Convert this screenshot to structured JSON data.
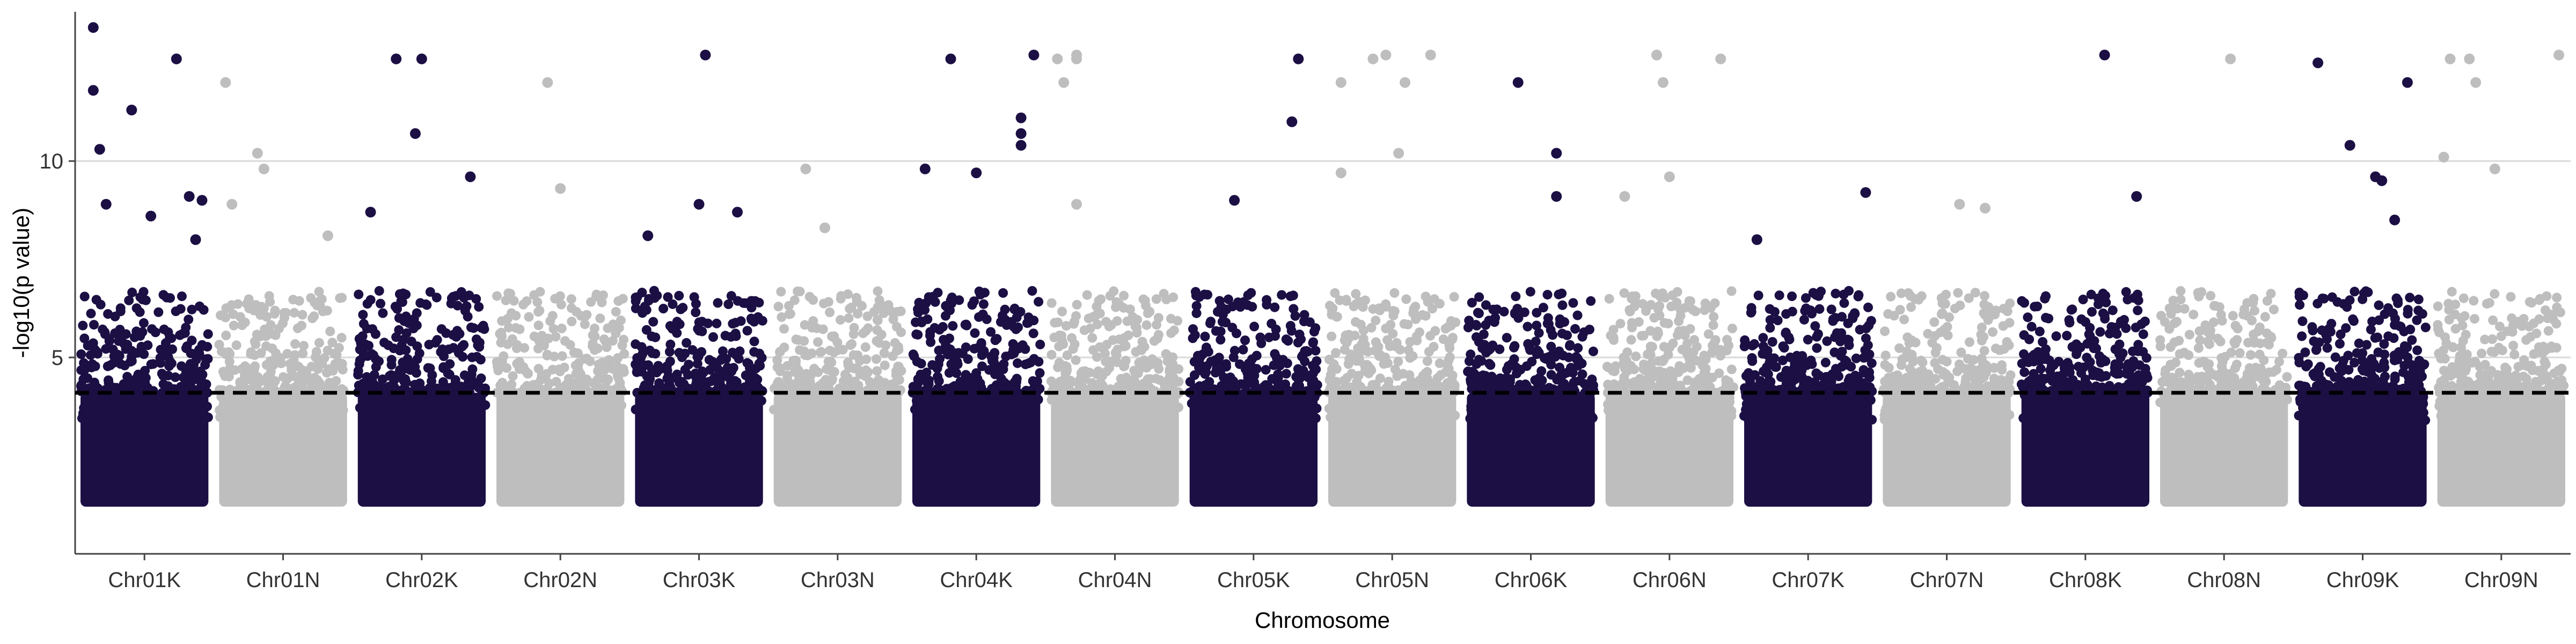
{
  "chart_data": {
    "type": "scatter",
    "title": "",
    "xlabel": "Chromosome",
    "ylabel": "-log10(p value)",
    "ylim": [
      0,
      13.8
    ],
    "y_ticks": [
      5,
      10
    ],
    "y_tick_labels": [
      "5",
      "10"
    ],
    "categories": [
      "Chr01K",
      "Chr01N",
      "Chr02K",
      "Chr02N",
      "Chr03K",
      "Chr03N",
      "Chr04K",
      "Chr04N",
      "Chr05K",
      "Chr05N",
      "Chr06K",
      "Chr06N",
      "Chr07K",
      "Chr07N",
      "Chr08K",
      "Chr08N",
      "Chr09K",
      "Chr09N"
    ],
    "threshold": 4.1,
    "grid": "horizontal major lines",
    "legend": "none",
    "dense_band_floor": 1.2,
    "colors": {
      "odd_chromosomes": "#1b0f44",
      "even_chromosomes": "#bebebe",
      "threshold_line": "#000000",
      "grid": "#d9d9d9"
    },
    "series": [
      {
        "category": "Chr01K",
        "top_hits": [
          [
            0.1,
            13.4
          ],
          [
            0.1,
            11.8
          ],
          [
            0.15,
            10.3
          ],
          [
            0.4,
            11.3
          ],
          [
            0.55,
            8.6
          ],
          [
            0.75,
            12.6
          ],
          [
            0.85,
            9.1
          ],
          [
            0.9,
            8.0
          ],
          [
            0.95,
            9.0
          ],
          [
            0.2,
            8.9
          ]
        ]
      },
      {
        "category": "Chr01N",
        "top_hits": [
          [
            0.05,
            12.0
          ],
          [
            0.3,
            10.2
          ],
          [
            0.35,
            9.8
          ],
          [
            0.1,
            8.9
          ],
          [
            0.85,
            8.1
          ]
        ]
      },
      {
        "category": "Chr02K",
        "top_hits": [
          [
            0.3,
            12.6
          ],
          [
            0.5,
            12.6
          ],
          [
            0.45,
            10.7
          ],
          [
            0.88,
            9.6
          ],
          [
            0.1,
            8.7
          ]
        ]
      },
      {
        "category": "Chr02N",
        "top_hits": [
          [
            0.4,
            12.0
          ],
          [
            0.5,
            9.3
          ]
        ]
      },
      {
        "category": "Chr03K",
        "top_hits": [
          [
            0.55,
            12.7
          ],
          [
            0.5,
            8.9
          ],
          [
            0.8,
            8.7
          ],
          [
            0.1,
            8.1
          ]
        ]
      },
      {
        "category": "Chr03N",
        "top_hits": [
          [
            0.25,
            9.8
          ],
          [
            0.4,
            8.3
          ]
        ]
      },
      {
        "category": "Chr04K",
        "top_hits": [
          [
            0.3,
            12.6
          ],
          [
            0.95,
            12.7
          ],
          [
            0.1,
            9.8
          ],
          [
            0.5,
            9.7
          ],
          [
            0.85,
            11.1
          ],
          [
            0.85,
            10.7
          ],
          [
            0.85,
            10.4
          ]
        ]
      },
      {
        "category": "Chr04N",
        "top_hits": [
          [
            0.05,
            12.6
          ],
          [
            0.1,
            12.0
          ],
          [
            0.2,
            12.6
          ],
          [
            0.2,
            12.7
          ],
          [
            0.2,
            8.9
          ]
        ]
      },
      {
        "category": "Chr05K",
        "top_hits": [
          [
            0.85,
            12.6
          ],
          [
            0.8,
            11.0
          ],
          [
            0.35,
            9.0
          ]
        ]
      },
      {
        "category": "Chr05N",
        "top_hits": [
          [
            0.1,
            12.0
          ],
          [
            0.35,
            12.6
          ],
          [
            0.45,
            12.7
          ],
          [
            0.6,
            12.0
          ],
          [
            0.8,
            12.7
          ],
          [
            0.1,
            9.7
          ],
          [
            0.55,
            10.2
          ]
        ]
      },
      {
        "category": "Chr06K",
        "top_hits": [
          [
            0.4,
            12.0
          ],
          [
            0.7,
            10.2
          ],
          [
            0.7,
            9.1
          ]
        ]
      },
      {
        "category": "Chr06N",
        "top_hits": [
          [
            0.4,
            12.7
          ],
          [
            0.45,
            12.0
          ],
          [
            0.5,
            9.6
          ],
          [
            0.9,
            12.6
          ],
          [
            0.15,
            9.1
          ]
        ]
      },
      {
        "category": "Chr07K",
        "top_hits": [
          [
            0.95,
            9.2
          ],
          [
            0.1,
            8.0
          ]
        ]
      },
      {
        "category": "Chr07N",
        "top_hits": [
          [
            0.8,
            8.8
          ],
          [
            0.6,
            8.9
          ]
        ]
      },
      {
        "category": "Chr08K",
        "top_hits": [
          [
            0.65,
            12.7
          ],
          [
            0.9,
            9.1
          ]
        ]
      },
      {
        "category": "Chr08N",
        "top_hits": [
          [
            0.55,
            12.6
          ]
        ]
      },
      {
        "category": "Chr09K",
        "top_hits": [
          [
            0.15,
            12.5
          ],
          [
            0.4,
            10.4
          ],
          [
            0.6,
            9.6
          ],
          [
            0.65,
            9.5
          ],
          [
            0.85,
            12.0
          ],
          [
            0.75,
            8.5
          ]
        ]
      },
      {
        "category": "Chr09N",
        "top_hits": [
          [
            0.1,
            12.6
          ],
          [
            0.25,
            12.6
          ],
          [
            0.3,
            12.0
          ],
          [
            0.95,
            12.7
          ],
          [
            0.05,
            10.1
          ],
          [
            0.45,
            9.8
          ]
        ]
      }
    ]
  }
}
